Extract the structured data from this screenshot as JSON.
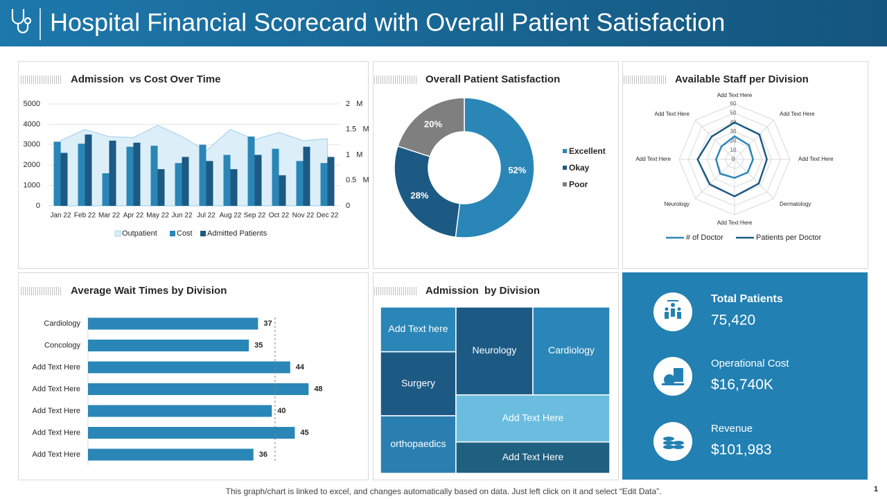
{
  "header": {
    "title": "Hospital Financial Scorecard with Overall Patient Satisfaction"
  },
  "chart_data": [
    {
      "type": "combo",
      "title": "Admission  vs Cost Over Time",
      "categories": [
        "Jan 22",
        "Feb 22",
        "Mar 22",
        "Apr 22",
        "May 22",
        "Jun 22",
        "Jul 22",
        "Aug 22",
        "Sep 22",
        "Oct 22",
        "Nov 22",
        "Dec 22"
      ],
      "series": [
        {
          "name": "Outpatient",
          "kind": "area",
          "color": "#dceef8",
          "values": [
            3200,
            3750,
            3400,
            3350,
            3950,
            3400,
            2700,
            3750,
            3250,
            3600,
            3200,
            3300
          ]
        },
        {
          "name": "Cost",
          "kind": "bar",
          "axis": "y2",
          "color": "#2a86b7",
          "values": [
            1.26,
            1.22,
            0.64,
            1.16,
            1.18,
            0.84,
            1.2,
            1.0,
            1.36,
            1.12,
            0.88,
            0.84
          ]
        },
        {
          "name": "Admitted Patients",
          "kind": "bar",
          "color": "#1c5a84",
          "values": [
            2600,
            3500,
            3200,
            3100,
            1800,
            2400,
            2200,
            1800,
            2500,
            1500,
            2900,
            2400
          ]
        }
      ],
      "ylim": [
        0,
        5000
      ],
      "yticks": [
        0,
        1000,
        2000,
        3000,
        4000,
        5000
      ],
      "y2lim": [
        0,
        2
      ],
      "y2ticks": [
        0,
        {
          "value": 0.5,
          "label": "0.5   M"
        },
        {
          "value": 1,
          "label": "1   M"
        },
        {
          "value": 1.5,
          "label": "1.5   M"
        },
        {
          "value": 2,
          "label": "2   M"
        }
      ],
      "grid": true,
      "legend": "bottom"
    },
    {
      "type": "pie",
      "title": "Overall Patient Satisfaction",
      "donut": true,
      "categories": [
        "Excellent",
        "Okay",
        "Poor"
      ],
      "values": [
        52,
        28,
        20
      ],
      "value_labels": [
        "52%",
        "28%",
        "20%"
      ],
      "colors": [
        "#2a86b7",
        "#1c5a84",
        "#7f7f7f"
      ],
      "legend": "right"
    },
    {
      "type": "radar",
      "title": "Available Staff per Division",
      "categories": [
        "Add Text Here",
        "Add Text Here",
        "Add Text Here",
        "Dermatology",
        "Add Text Here",
        "Neurology",
        "Add Text Here",
        "Add Text Here"
      ],
      "series": [
        {
          "name": "# of Doctor",
          "color": "#2a86b7",
          "values": [
            25,
            22,
            20,
            20,
            20,
            22,
            20,
            20
          ]
        },
        {
          "name": "Patients per Doctor",
          "color": "#1c5a84",
          "values": [
            40,
            38,
            35,
            37,
            40,
            38,
            40,
            35
          ]
        }
      ],
      "rlim": [
        0,
        60
      ],
      "rticks": [
        0,
        10,
        20,
        30,
        40,
        50,
        60
      ],
      "legend": "bottom"
    },
    {
      "type": "hbar",
      "title": "Average Wait Times by Division",
      "categories": [
        "Cardiology",
        "Concology",
        "Add Text Here",
        "Add Text Here",
        "Add Text Here",
        "Add Text Here",
        "Add Text Here"
      ],
      "values": [
        37,
        35,
        44,
        48,
        40,
        45,
        36
      ],
      "color": "#2a86b7",
      "xlim": [
        0,
        57
      ],
      "reference_line": 40.7
    },
    {
      "type": "treemap",
      "title": "Admission  by Division",
      "categories": [
        "Add Text here",
        "Surgery",
        "orthopaedics",
        "Neurology",
        "Cardiology",
        "Add Text Here",
        "Add Text Here"
      ],
      "values": [
        7,
        10,
        9,
        14,
        14,
        15,
        10
      ],
      "colors": [
        "#2a86b7",
        "#1c5a84",
        "#2a7fb0",
        "#1c5a84",
        "#2a86b7",
        "#6bbde0",
        "#1f5f7f"
      ]
    }
  ],
  "kpis": [
    {
      "label": "Total Patients",
      "value": "75,420"
    },
    {
      "label": "Operational Cost",
      "value": "$16,740K"
    },
    {
      "label": "Revenue",
      "value": "$101,983"
    }
  ],
  "footer": {
    "note": "This graph/chart is linked to excel, and changes automatically based on data. Just left click on it and select “Edit Data”.",
    "page": "1"
  }
}
